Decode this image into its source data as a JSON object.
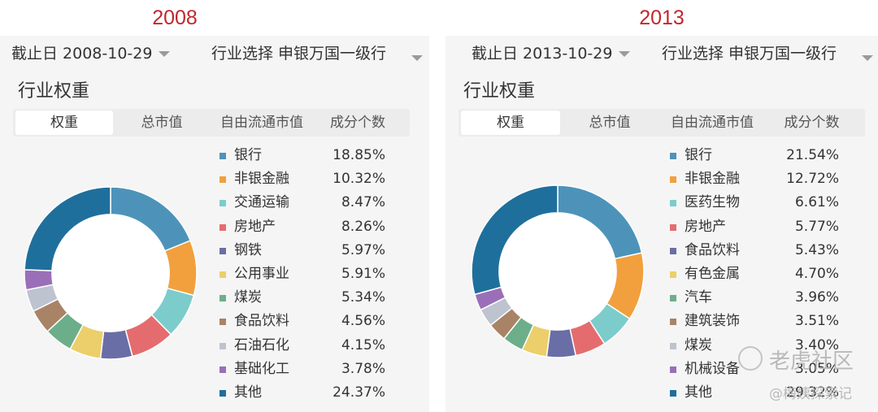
{
  "labels": {
    "left_year": "2008",
    "right_year": "2013"
  },
  "colors": [
    "#4d93b9",
    "#f2a03d",
    "#7ccccc",
    "#e56c6e",
    "#6a6ea6",
    "#eccf6a",
    "#6dae8a",
    "#a98366",
    "#bdc3cf",
    "#9a6fb7",
    "#1f6f9c"
  ],
  "chart_data": [
    {
      "type": "pie",
      "header_date": "截止日 2008-10-29",
      "header_industry": "行业选择 申银万国一级行",
      "section_title": "行业权重",
      "tabs": [
        "权重",
        "总市值",
        "自由流通市值",
        "成分个数"
      ],
      "active_tab": 0,
      "categories": [
        "银行",
        "非银金融",
        "交通运输",
        "房地产",
        "钢铁",
        "公用事业",
        "煤炭",
        "食品饮料",
        "石油石化",
        "基础化工",
        "其他"
      ],
      "values": [
        18.85,
        10.32,
        8.47,
        8.26,
        5.97,
        5.91,
        5.34,
        4.56,
        4.15,
        3.78,
        24.37
      ],
      "value_labels": [
        "18.85%",
        "10.32%",
        "8.47%",
        "8.26%",
        "5.97%",
        "5.91%",
        "5.34%",
        "4.56%",
        "4.15%",
        "3.78%",
        "24.37%"
      ],
      "legend_placement": "right",
      "inner_radius_ratio": 0.68
    },
    {
      "type": "pie",
      "header_date": "截止日 2013-10-29",
      "header_industry": "行业选择 申银万国一级行",
      "section_title": "行业权重",
      "tabs": [
        "权重",
        "总市值",
        "自由流通市值",
        "成分个数"
      ],
      "active_tab": 0,
      "categories": [
        "银行",
        "非银金融",
        "医药生物",
        "房地产",
        "食品饮料",
        "有色金属",
        "汽车",
        "建筑装饰",
        "煤炭",
        "机械设备",
        "其他"
      ],
      "values": [
        21.54,
        12.72,
        6.61,
        5.77,
        5.43,
        4.7,
        3.96,
        3.51,
        3.4,
        3.05,
        29.32
      ],
      "value_labels": [
        "21.54%",
        "12.72%",
        "6.61%",
        "5.77%",
        "5.43%",
        "4.70%",
        "3.96%",
        "3.51%",
        "3.40%",
        "3.05%",
        "29.32%"
      ],
      "legend_placement": "right",
      "inner_radius_ratio": 0.68
    }
  ],
  "watermark": {
    "line1": "老虎社区",
    "line2": "@梅姨探索记"
  }
}
